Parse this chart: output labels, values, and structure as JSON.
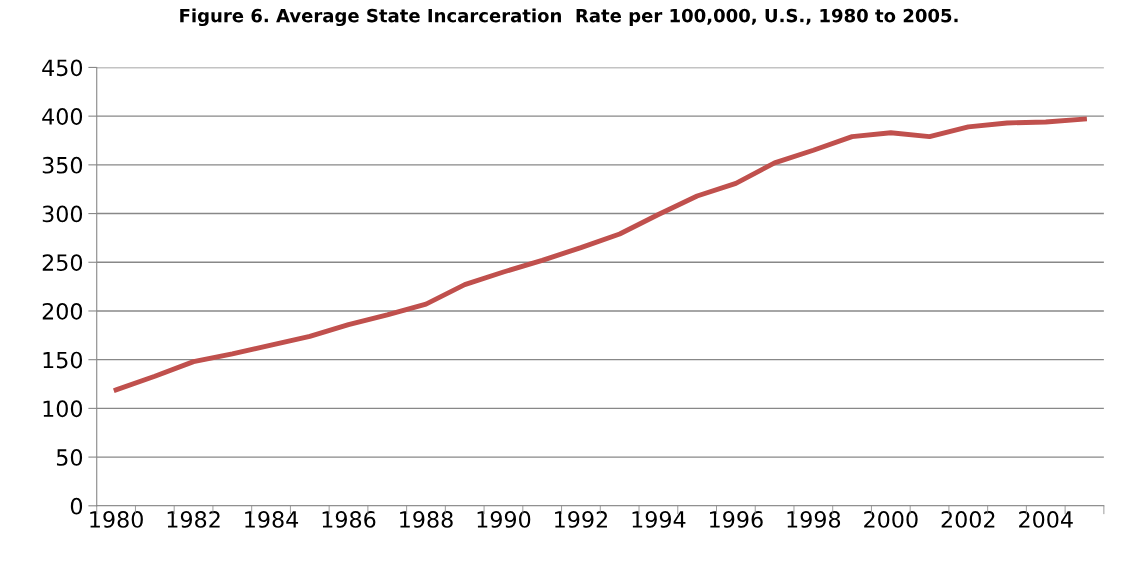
{
  "chart_data": {
    "type": "line",
    "title": "Figure 6. Average State Incarceration  Rate per 100,000, U.S., 1980 to 2005.",
    "categories": [
      "1980",
      null,
      "1982",
      null,
      "1984",
      null,
      "1986",
      null,
      "1988",
      null,
      "1990",
      null,
      "1992",
      null,
      "1994",
      null,
      "1996",
      null,
      "1998",
      null,
      "2000",
      null,
      "2002",
      null,
      "2004",
      null
    ],
    "series": [
      {
        "color": "#c0504d",
        "values": [
          119,
          133,
          148,
          156,
          165,
          174,
          186,
          196,
          207,
          227,
          240,
          252,
          265,
          279,
          299,
          318,
          331,
          352,
          365,
          379,
          383,
          379,
          389,
          393,
          394,
          397
        ]
      }
    ],
    "ylim": [
      0,
      450
    ],
    "yticks": [
      0,
      50,
      100,
      150,
      200,
      250,
      300,
      350,
      400,
      450
    ],
    "grid": "y",
    "marker": "none",
    "line_style": "solid"
  }
}
